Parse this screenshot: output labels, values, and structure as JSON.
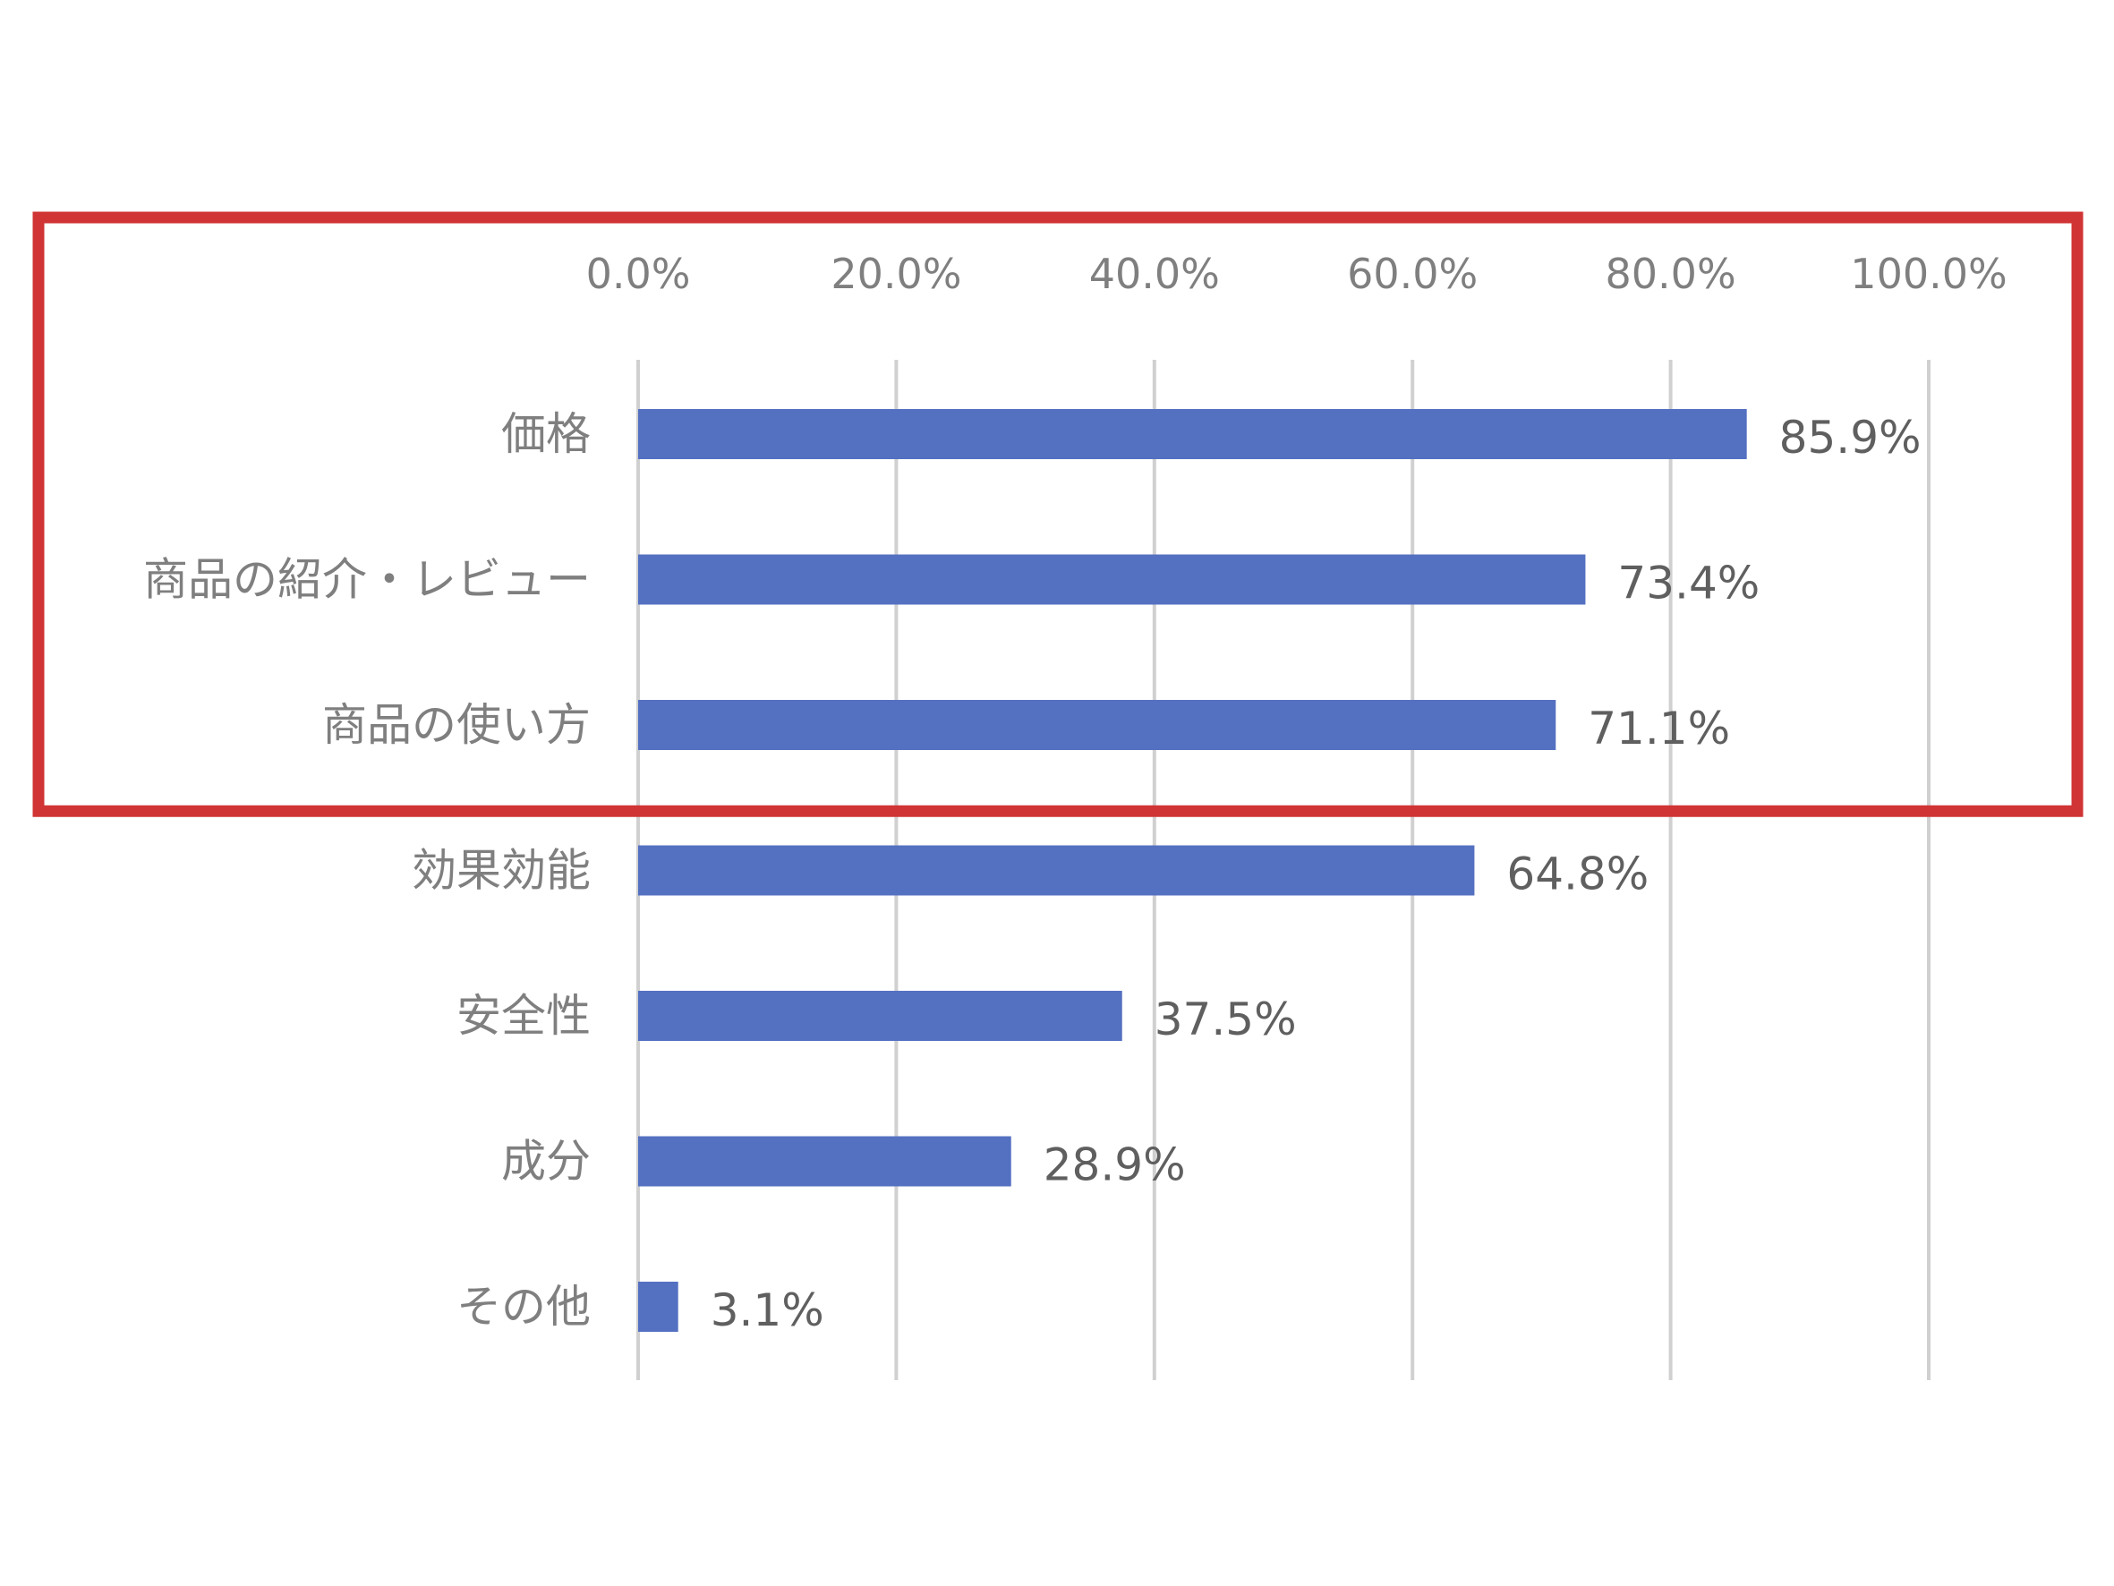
{
  "chart_data": {
    "type": "bar",
    "orientation": "horizontal",
    "categories": [
      "価格",
      "商品の紹介・レビュー",
      "商品の使い方",
      "効果効能",
      "安全性",
      "成分",
      "その他"
    ],
    "values": [
      85.9,
      73.4,
      71.1,
      64.8,
      37.5,
      28.9,
      3.1
    ],
    "data_labels": [
      "85.9%",
      "73.4%",
      "71.1%",
      "64.8%",
      "37.5%",
      "28.9%",
      "3.1%"
    ],
    "xlim": [
      0,
      100
    ],
    "x_ticks": [
      0,
      20,
      40,
      60,
      80,
      100
    ],
    "x_tick_labels": [
      "0.0%",
      "20.0%",
      "40.0%",
      "60.0%",
      "80.0%",
      "100.0%"
    ],
    "x_axis_position": "top",
    "grid": true,
    "legend": "none",
    "title": "",
    "xlabel": "",
    "ylabel": "",
    "highlight": {
      "categories": [
        "価格",
        "商品の紹介・レビュー",
        "商品の使い方"
      ],
      "color": "#d03434"
    },
    "colors": {
      "bar": "#5470c1",
      "grid": "#d0d0d0",
      "text": "#7f7f7f"
    }
  }
}
